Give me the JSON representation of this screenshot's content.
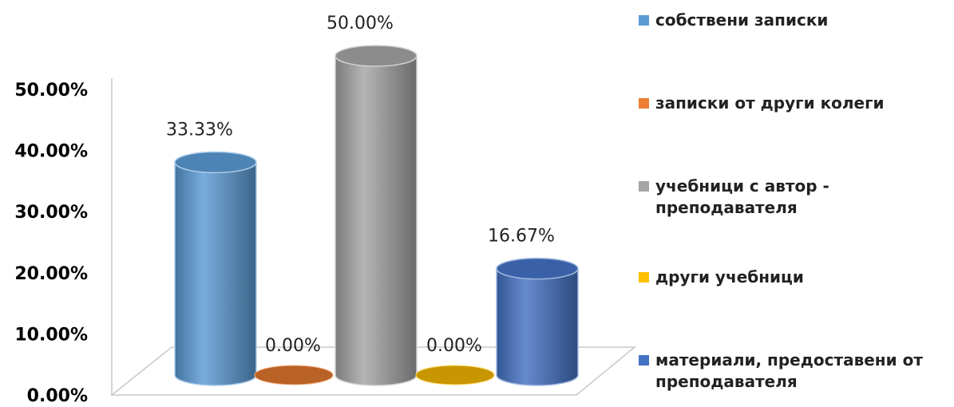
{
  "chart_data": {
    "type": "bar",
    "style": "3d-cylinder",
    "categories": [
      "собствени записки",
      "записки от други колеги",
      "учебници с автор - преподавателя",
      "други учебници",
      "материали, предоставени от преподавателя"
    ],
    "values": [
      33.33,
      0.0,
      50.0,
      0.0,
      16.67
    ],
    "data_labels": [
      "33.33%",
      "0.00%",
      "50.00%",
      "0.00%",
      "16.67%"
    ],
    "colors": [
      "#5b9bd5",
      "#ed7d31",
      "#a5a5a5",
      "#ffc000",
      "#4472c4"
    ],
    "yticks": [
      "0.00%",
      "10.00%",
      "20.00%",
      "30.00%",
      "40.00%",
      "50.00%"
    ],
    "ylim": [
      0,
      50
    ],
    "grid": false,
    "legend_position": "right",
    "legend": [
      {
        "label": "собствени записки",
        "color": "#5b9bd5"
      },
      {
        "label": "записки от други колеги",
        "color": "#ed7d31"
      },
      {
        "label": "учебници с автор - преподавателя",
        "color": "#a5a5a5"
      },
      {
        "label": "други учебници",
        "color": "#ffc000"
      },
      {
        "label": "материали, предоставени от преподавателя",
        "color": "#4472c4"
      }
    ]
  }
}
